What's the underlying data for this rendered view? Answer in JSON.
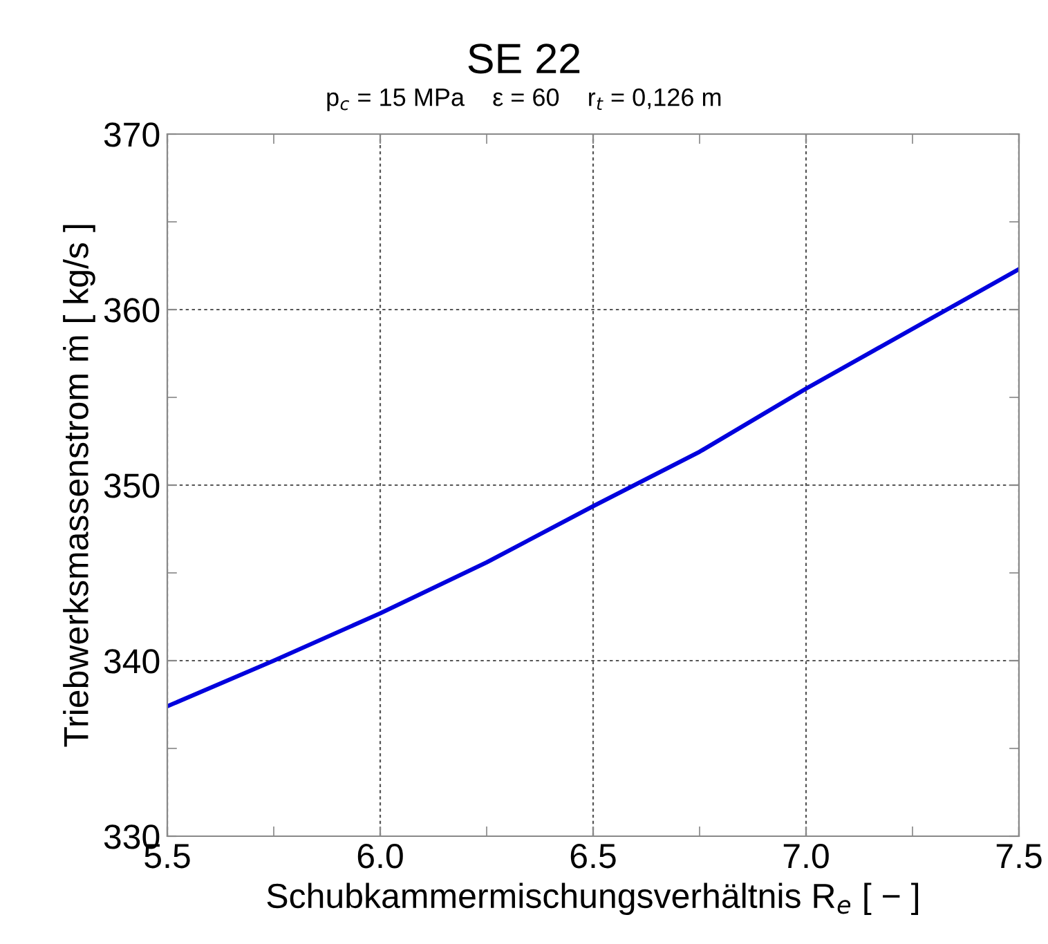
{
  "chart_data": {
    "type": "line",
    "title": "SE 22",
    "subtitle": "p$_{c}$ = 15 MPa    ε = 60    r$_{t}$ = 0,126 m",
    "xlabel": "Schubkammermischungsverhältnis R$_{e}$ [ − ]",
    "ylabel": "Triebwerksmassenstrom ṁ [ kg/s ]",
    "series": [
      {
        "color": "#0000dd",
        "x": [
          5.5,
          5.75,
          6.0,
          6.25,
          6.5,
          6.75,
          7.0,
          7.25,
          7.5
        ],
        "values": [
          337.4,
          340.0,
          342.7,
          345.6,
          348.8,
          351.9,
          355.5,
          358.9,
          362.3
        ]
      }
    ],
    "xlim": [
      5.5,
      7.5
    ],
    "ylim": [
      330,
      370
    ],
    "xticks": [
      {
        "value": 5.5,
        "label": "5.5"
      },
      {
        "value": 6.0,
        "label": "6.0"
      },
      {
        "value": 6.5,
        "label": "6.5"
      },
      {
        "value": 7.0,
        "label": "7.0"
      },
      {
        "value": 7.5,
        "label": "7.5"
      }
    ],
    "yticks": [
      330,
      340,
      350,
      360,
      370
    ],
    "grid": true,
    "marker": "none",
    "line_style": "solid",
    "legend": false
  }
}
